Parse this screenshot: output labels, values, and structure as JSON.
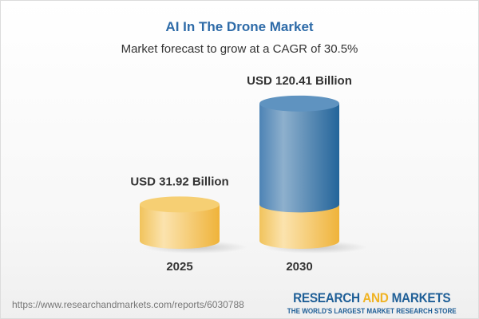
{
  "header": {
    "title": "AI In The Drone Market",
    "subtitle": "Market forecast to grow at a CAGR of 30.5%"
  },
  "chart_data": {
    "type": "bar",
    "style": "3d-cylinder",
    "title": "AI In The Drone Market",
    "subtitle": "Market forecast to grow at a CAGR of 30.5%",
    "categories": [
      "2025",
      "2030"
    ],
    "values": [
      31.92,
      120.41
    ],
    "unit": "USD Billion",
    "data_labels": [
      "USD 31.92 Billion",
      "USD 120.41 Billion"
    ],
    "grid": false,
    "colors": {
      "base": "#f2c35a",
      "growth": "#3d77ab"
    }
  },
  "footer": {
    "url": "https://www.researchandmarkets.com/reports/6030788",
    "logo_research": "RESEARCH",
    "logo_and": "AND",
    "logo_markets": "MARKETS",
    "logo_tagline": "THE WORLD'S LARGEST MARKET RESEARCH STORE"
  }
}
